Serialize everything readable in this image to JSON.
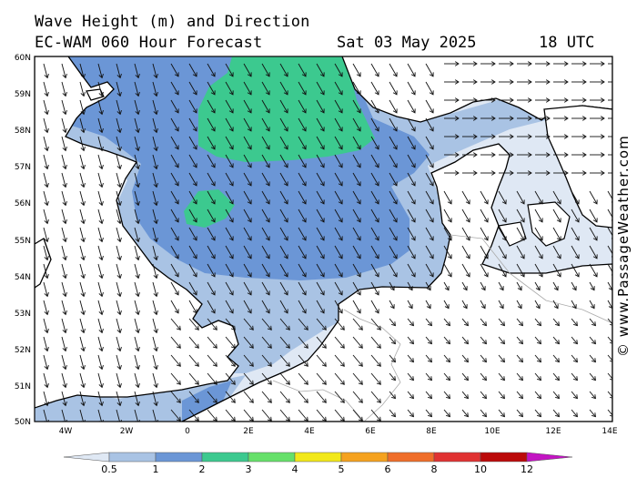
{
  "header": {
    "title_line1": "Wave Height (m) and Direction",
    "title_line2": "EC-WAM 060 Hour Forecast",
    "date": "Sat 03 May 2025",
    "time": "18 UTC"
  },
  "credit": "© www.PassageWeather.com",
  "axes": {
    "lat_labels": [
      "60N",
      "59N",
      "58N",
      "57N",
      "56N",
      "55N",
      "54N",
      "53N",
      "52N",
      "51N",
      "50N"
    ],
    "lon_labels": [
      "4W",
      "2W",
      "0",
      "2E",
      "4E",
      "6E",
      "8E",
      "10E",
      "12E",
      "14E"
    ]
  },
  "legend": {
    "ticks": [
      "0.5",
      "1",
      "2",
      "3",
      "4",
      "5",
      "6",
      "8",
      "10",
      "12"
    ],
    "colors": [
      "#dfe8f4",
      "#a9c3e4",
      "#6b96d6",
      "#3cc98f",
      "#66e06a",
      "#f2e81a",
      "#f5a21f",
      "#ef6e2a",
      "#e03232",
      "#bb0a0a",
      "#c314c3"
    ]
  },
  "colors": {
    "land_line": "#000000",
    "border": "#aaaaaa",
    "arrow": "#111111"
  }
}
